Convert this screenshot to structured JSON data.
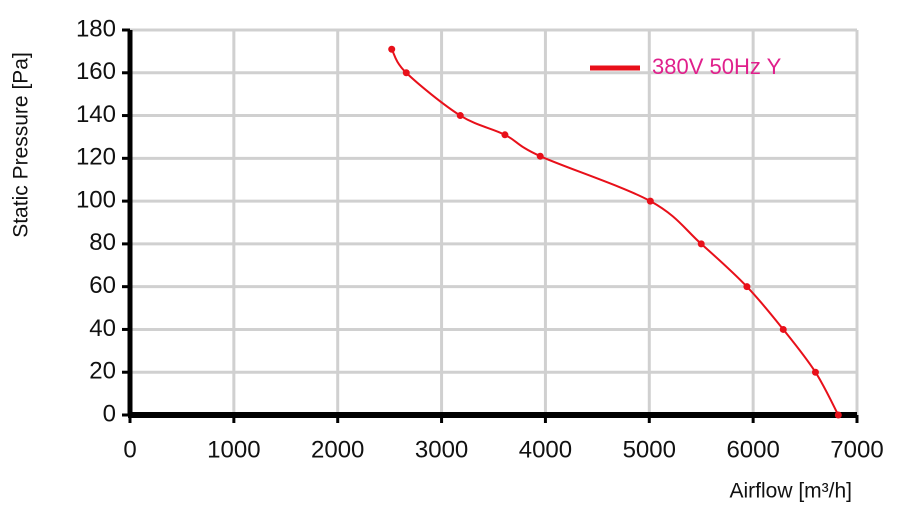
{
  "chart_data": {
    "type": "line",
    "x_label": "Airflow [m³/h]",
    "y_label": "Static Pressure [Pa]",
    "series": [
      {
        "name": "380V 50Hz Y",
        "color": "#e8101a",
        "x": [
          2520,
          2660,
          3180,
          3610,
          3950,
          5010,
          5500,
          5940,
          6290,
          6600,
          6820
        ],
        "values": [
          171,
          160,
          140,
          131,
          121,
          100,
          80,
          60,
          40,
          20,
          0
        ]
      }
    ],
    "xlim": [
      0,
      7000
    ],
    "xticks": [
      0,
      1000,
      2000,
      3000,
      4000,
      5000,
      6000,
      7000
    ],
    "ylim": [
      0,
      180
    ],
    "yticks": [
      0,
      20,
      40,
      60,
      80,
      100,
      120,
      140,
      160,
      180
    ],
    "grid": true,
    "legend": "top-right",
    "legend_text_color": "#e0208c"
  }
}
